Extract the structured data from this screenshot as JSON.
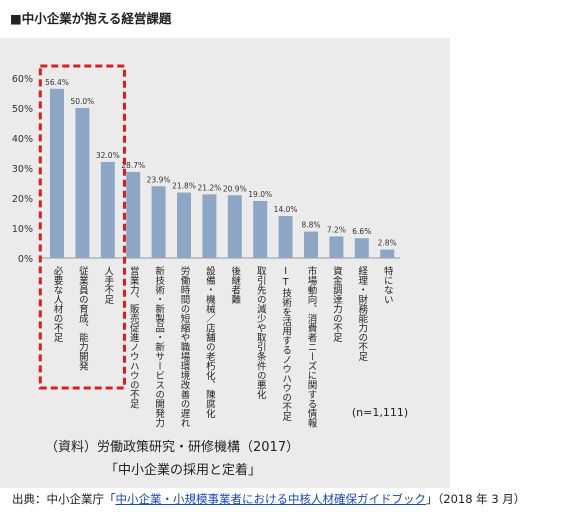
{
  "heading": "■中小企業が抱える経営課題",
  "chart_data": {
    "type": "bar",
    "title": "",
    "xlabel": "",
    "ylabel": "",
    "ylim": [
      0,
      60
    ],
    "yticks": [
      "0%",
      "10%",
      "20%",
      "30%",
      "40%",
      "50%",
      "60%"
    ],
    "grid": false,
    "bar_color": "#8ea6c6",
    "highlight_color": "#dd1e1e",
    "highlight_count": 3,
    "categories": [
      "必要な人材の不足",
      "従業員の育成、能力開発",
      "人手不足",
      "営業力、販売促進ノウハウの不足",
      "新技術・新製品・新サービスの開発力",
      "労働時間の短縮や職場環境改善の遅れ",
      "設備・機械／店舗の老朽化、陳腐化",
      "後継者難",
      "取引先の減少や取引条件の悪化",
      "IT技術を活用するノウハウの不足",
      "市場動向、消費者ニーズに関する情報",
      "資金調達力の不足",
      "経理・財務能力の不足",
      "特にない"
    ],
    "values": [
      56.4,
      50.0,
      32.0,
      28.7,
      23.9,
      21.8,
      21.2,
      20.9,
      19.0,
      14.0,
      8.8,
      7.2,
      6.6,
      2.8
    ],
    "value_labels": [
      "56.4%",
      "50.0%",
      "32.0%",
      "28.7%",
      "23.9%",
      "21.8%",
      "21.2%",
      "20.9%",
      "19.0%",
      "14.0%",
      "8.8%",
      "7.2%",
      "6.6%",
      "2.8%"
    ],
    "annotation": "(n=1,111)"
  },
  "caption_line1": "（資料）労働政策研究・研修機構（2017）",
  "caption_line2": "「中小企業の採用と定着」",
  "source_prefix": "出典：中小企業庁「",
  "source_link": "中小企業・小規模事業者における中核人材確保ガイドブック",
  "source_suffix": "」（2018 年 3 月）"
}
